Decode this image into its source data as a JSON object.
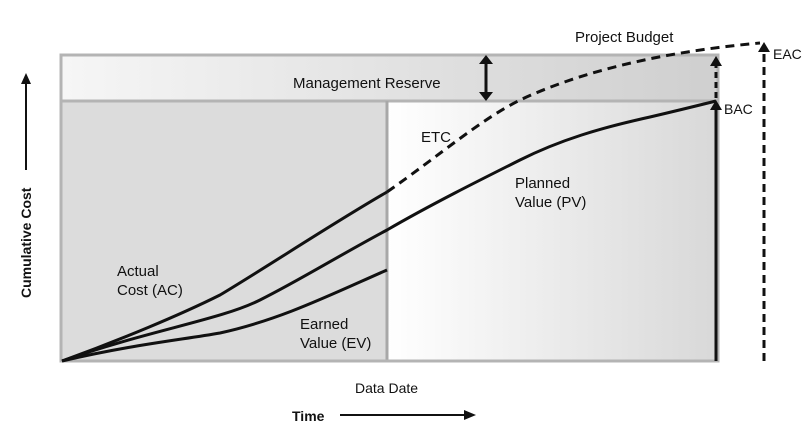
{
  "labels": {
    "project_budget": "Project Budget",
    "management_reserve": "Management Reserve",
    "etc": "ETC",
    "eac": "EAC",
    "bac": "BAC",
    "planned_value": [
      "Planned",
      "Value (PV)"
    ],
    "actual_cost": [
      "Actual",
      "Cost (AC)"
    ],
    "earned_value": [
      "Earned",
      "Value (EV)"
    ],
    "data_date": "Data Date",
    "y_axis": "Cumulative Cost",
    "x_axis": "Time"
  },
  "colors": {
    "past_region": "#dcdcdc",
    "future_region_light": "#ffffff",
    "future_region_dark": "#d8d8d8",
    "reserve_band_light": "#f4f4f4",
    "reserve_band_dark": "#d0d0d0",
    "frame": "#b4b4b4",
    "lines": "#111111"
  }
}
